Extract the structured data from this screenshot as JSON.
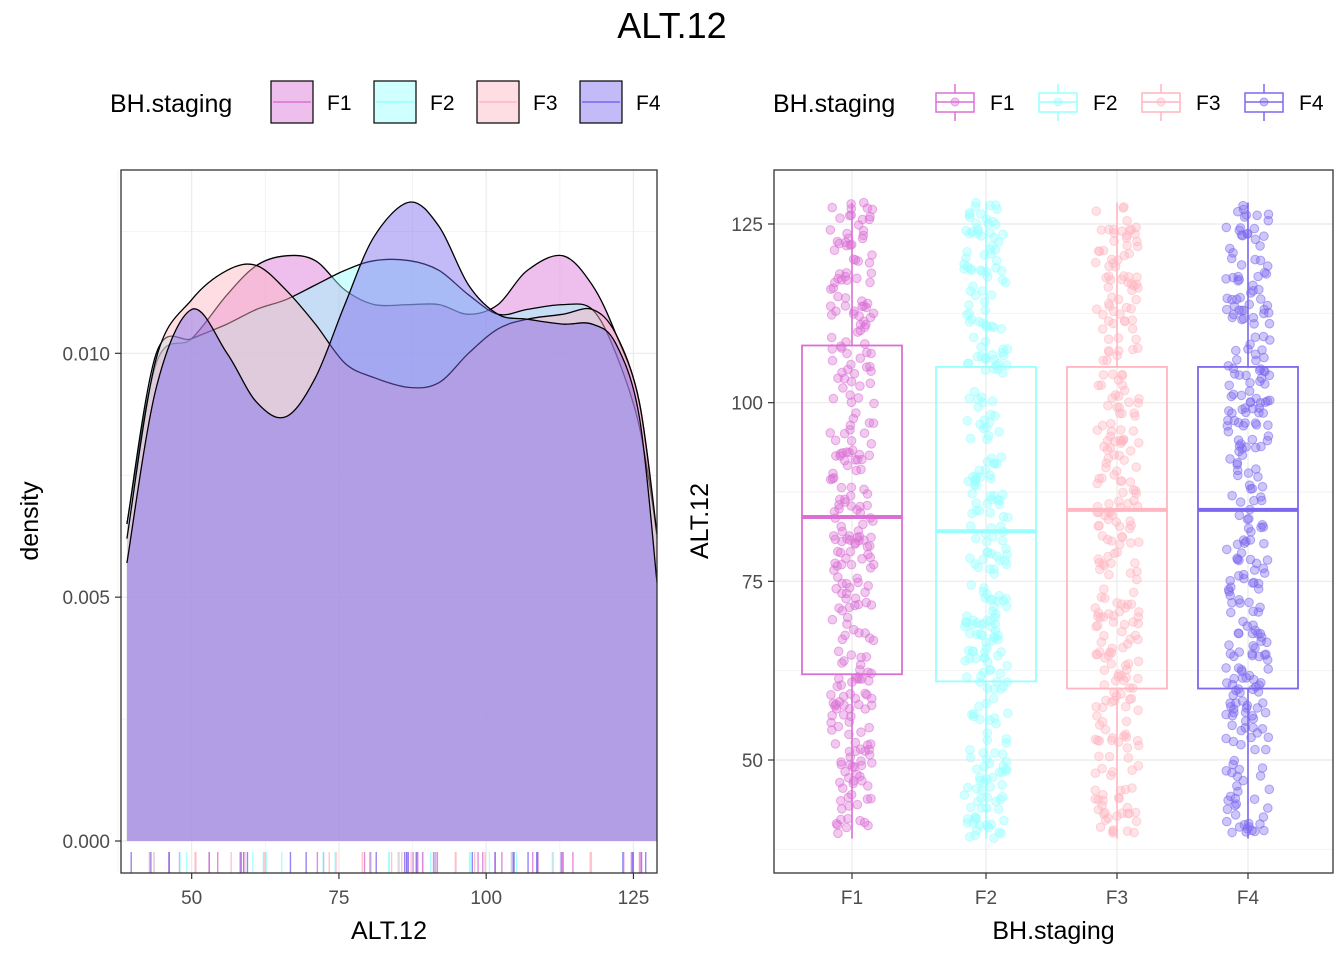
{
  "title": "ALT.12",
  "colors": {
    "F1": "#DA70D6",
    "F2": "#97FFFF",
    "F3": "#FFB6C1",
    "F4": "#7B68EE"
  },
  "chart_data": [
    {
      "type": "area",
      "subtype": "density",
      "title": "ALT.12",
      "xlabel": "ALT.12",
      "ylabel": "density",
      "xlim": [
        38,
        129
      ],
      "ylim": [
        0,
        0.0138
      ],
      "x_ticks": [
        "50",
        "75",
        "100",
        "125"
      ],
      "y_ticks": [
        "0.000",
        "0.005",
        "0.010"
      ],
      "grid": true,
      "legend": {
        "title": "BH.staging",
        "position": "top",
        "items": [
          "F1",
          "F2",
          "F3",
          "F4"
        ]
      },
      "x": [
        39,
        44,
        50,
        56,
        61,
        66,
        71,
        76,
        81,
        87,
        92,
        97,
        102,
        107,
        113,
        118,
        122,
        126,
        129
      ],
      "series": [
        {
          "name": "F1",
          "values": [
            0.0065,
            0.0098,
            0.0103,
            0.0112,
            0.0118,
            0.012,
            0.0119,
            0.0113,
            0.011,
            0.011,
            0.011,
            0.0108,
            0.011,
            0.0117,
            0.012,
            0.0114,
            0.0104,
            0.009,
            0.0062
          ]
        },
        {
          "name": "F2",
          "values": [
            0.0065,
            0.01,
            0.0103,
            0.0106,
            0.0109,
            0.0111,
            0.0114,
            0.0117,
            0.0119,
            0.0119,
            0.0117,
            0.0112,
            0.0108,
            0.0109,
            0.011,
            0.0109,
            0.01,
            0.0085,
            0.0063
          ]
        },
        {
          "name": "F3",
          "values": [
            0.0062,
            0.0099,
            0.0111,
            0.0117,
            0.0118,
            0.0113,
            0.0106,
            0.0098,
            0.0095,
            0.0093,
            0.0094,
            0.01,
            0.0105,
            0.0107,
            0.0108,
            0.0109,
            0.0104,
            0.009,
            0.0063
          ]
        },
        {
          "name": "F4",
          "values": [
            0.0057,
            0.0093,
            0.0109,
            0.01,
            0.009,
            0.0087,
            0.0095,
            0.011,
            0.0124,
            0.0131,
            0.0126,
            0.0114,
            0.0108,
            0.0107,
            0.0106,
            0.0106,
            0.0102,
            0.0087,
            0.0053
          ]
        }
      ]
    },
    {
      "type": "box",
      "xlabel": "BH.staging",
      "ylabel": "ALT.12",
      "categories": [
        "F1",
        "F2",
        "F3",
        "F4"
      ],
      "ylim": [
        37,
        133
      ],
      "y_ticks": [
        "50",
        "75",
        "100",
        "125"
      ],
      "grid": true,
      "legend": {
        "title": "BH.staging",
        "position": "top",
        "items": [
          "F1",
          "F2",
          "F3",
          "F4"
        ]
      },
      "boxes": [
        {
          "name": "F1",
          "min": 39,
          "q1": 62,
          "median": 84,
          "q3": 108,
          "max": 128
        },
        {
          "name": "F2",
          "min": 39,
          "q1": 61,
          "median": 82,
          "q3": 105,
          "max": 128
        },
        {
          "name": "F3",
          "min": 39,
          "q1": 60,
          "median": 85,
          "q3": 105,
          "max": 128
        },
        {
          "name": "F4",
          "min": 39,
          "q1": 60,
          "median": 85,
          "q3": 105,
          "max": 128
        }
      ],
      "jitter_points_per_group": 300
    }
  ]
}
